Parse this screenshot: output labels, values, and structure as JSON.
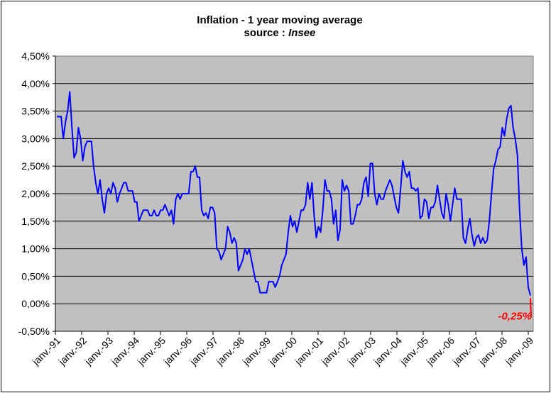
{
  "chart_data": {
    "type": "line",
    "title": "Inflation - 1 year moving average",
    "subtitle_prefix": "source : ",
    "subtitle_source": "Insee",
    "xlabel": "",
    "ylabel": "",
    "ylim": [
      -0.5,
      4.5
    ],
    "grid": true,
    "legend": "none",
    "plot_background": "#C0C0C0",
    "line_color": "#0000FF",
    "highlight_color": "#FF0000",
    "y_ticks": [
      "-0,50%",
      "0,00%",
      "0,50%",
      "1,00%",
      "1,50%",
      "2,00%",
      "2,50%",
      "3,00%",
      "3,50%",
      "4,00%",
      "4,50%"
    ],
    "y_tick_values": [
      -0.5,
      0,
      0.5,
      1.0,
      1.5,
      2.0,
      2.5,
      3.0,
      3.5,
      4.0,
      4.5
    ],
    "x_ticks": [
      "janv.-91",
      "janv.-92",
      "janv.-93",
      "janv.-94",
      "janv.-95",
      "janv.-96",
      "janv.-97",
      "janv.-98",
      "janv.-99",
      "janv.-00",
      "janv.-01",
      "janv.-02",
      "janv.-03",
      "janv.-04",
      "janv.-05",
      "janv.-06",
      "janv.-07",
      "janv.-08",
      "janv.-09"
    ],
    "series": [
      {
        "values": [
          3.4,
          3.4,
          3.4,
          3.0,
          3.3,
          3.5,
          3.85,
          3.2,
          2.65,
          2.75,
          3.2,
          3.0,
          2.6,
          2.85,
          2.95,
          2.95,
          2.95,
          2.5,
          2.2,
          2.0,
          2.25,
          1.9,
          1.65,
          2.0,
          2.1,
          2.0,
          2.2,
          2.1,
          1.85,
          2.0,
          2.1,
          2.2,
          2.2,
          2.05,
          2.05,
          2.05,
          1.85,
          1.85,
          1.5,
          1.6,
          1.7,
          1.7,
          1.7,
          1.6,
          1.6,
          1.7,
          1.6,
          1.6,
          1.7,
          1.7,
          1.8,
          1.7,
          1.6,
          1.7,
          1.45,
          1.9,
          2.0,
          1.9,
          2.0,
          2.0,
          2.0,
          2.0,
          2.4,
          2.4,
          2.5,
          2.3,
          2.3,
          1.7,
          1.6,
          1.65,
          1.55,
          1.75,
          1.75,
          1.65,
          1.0,
          0.95,
          0.8,
          0.9,
          1.0,
          1.4,
          1.3,
          1.1,
          1.2,
          1.1,
          0.6,
          0.7,
          0.8,
          1.0,
          0.9,
          1.0,
          0.8,
          0.6,
          0.4,
          0.4,
          0.2,
          0.2,
          0.2,
          0.2,
          0.4,
          0.4,
          0.4,
          0.3,
          0.4,
          0.5,
          0.7,
          0.8,
          0.9,
          1.3,
          1.6,
          1.4,
          1.5,
          1.3,
          1.5,
          1.7,
          1.7,
          1.8,
          2.2,
          1.9,
          2.2,
          1.6,
          1.2,
          1.4,
          1.3,
          1.7,
          2.25,
          2.05,
          2.05,
          1.9,
          1.45,
          1.7,
          1.15,
          1.35,
          2.25,
          2.05,
          2.15,
          2.05,
          1.45,
          1.45,
          1.6,
          1.8,
          1.8,
          1.9,
          2.2,
          2.3,
          1.95,
          2.55,
          2.55,
          2.0,
          1.8,
          2.0,
          1.9,
          1.9,
          2.05,
          2.15,
          2.25,
          2.15,
          1.95,
          1.75,
          1.65,
          2.1,
          2.6,
          2.4,
          2.3,
          2.4,
          2.1,
          2.1,
          2.05,
          2.1,
          1.55,
          1.6,
          1.9,
          1.85,
          1.55,
          1.75,
          1.75,
          1.85,
          2.15,
          1.9,
          1.65,
          1.55,
          2.0,
          1.8,
          1.5,
          1.8,
          2.1,
          1.9,
          1.9,
          1.9,
          1.2,
          1.1,
          1.35,
          1.55,
          1.25,
          1.05,
          1.2,
          1.25,
          1.1,
          1.2,
          1.1,
          1.15,
          1.5,
          2.0,
          2.45,
          2.6,
          2.8,
          2.85,
          3.2,
          3.05,
          3.35,
          3.55,
          3.6,
          3.2,
          3.0,
          2.7,
          1.7,
          1.0,
          0.7,
          0.85,
          0.3,
          0.15
        ]
      },
      {
        "name": "highlight",
        "values": [
          0.1,
          -0.25
        ]
      }
    ],
    "annotation": "-0,25%"
  }
}
